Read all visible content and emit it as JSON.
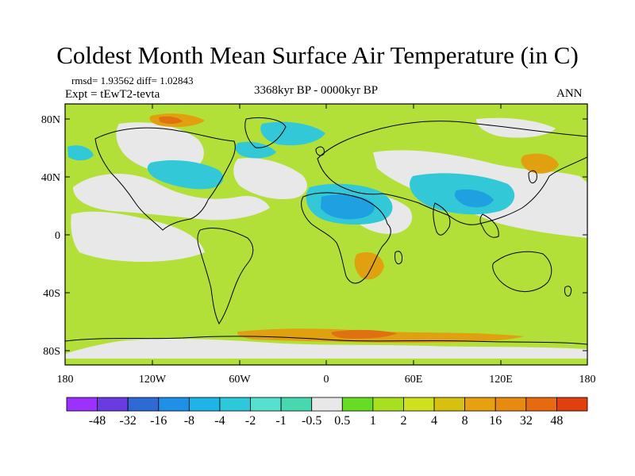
{
  "title": "Coldest Month Mean Surface Air Temperature (in C)",
  "stats": "rmsd= 1.93562  diff= 1.02843",
  "experiment": "Expt = tEwT2-tevta",
  "period": "3368kyr BP - 0000kyr BP",
  "season": "ANN",
  "map": {
    "lat_ticks": [
      "80N",
      "40N",
      "0",
      "40S",
      "80S"
    ],
    "lon_ticks": [
      "180",
      "120W",
      "60W",
      "0",
      "60E",
      "120E",
      "180"
    ]
  },
  "colorbar": {
    "colors": [
      "#9b30ff",
      "#6a3be0",
      "#2e6ad6",
      "#1e90e8",
      "#1fb4e8",
      "#2cc9da",
      "#55e0d0",
      "#48d8b0",
      "#e8e8e8",
      "#66dd22",
      "#a8e020",
      "#cfe01c",
      "#d8c010",
      "#e6a010",
      "#e88a10",
      "#e86a10",
      "#e04010"
    ],
    "labels": [
      "-48",
      "-32",
      "-16",
      "-8",
      "-4",
      "-2",
      "-1",
      "-0.5",
      "0.5",
      "1",
      "2",
      "4",
      "8",
      "16",
      "32",
      "48"
    ]
  },
  "palette": {
    "ocean": "#b2e038",
    "warm_land": "#cdd42a",
    "near_zero": "#e8e8e8",
    "cool": "#33c8d8",
    "cold": "#1fa0e0",
    "warm": "#e0a010",
    "hot": "#e07010"
  }
}
